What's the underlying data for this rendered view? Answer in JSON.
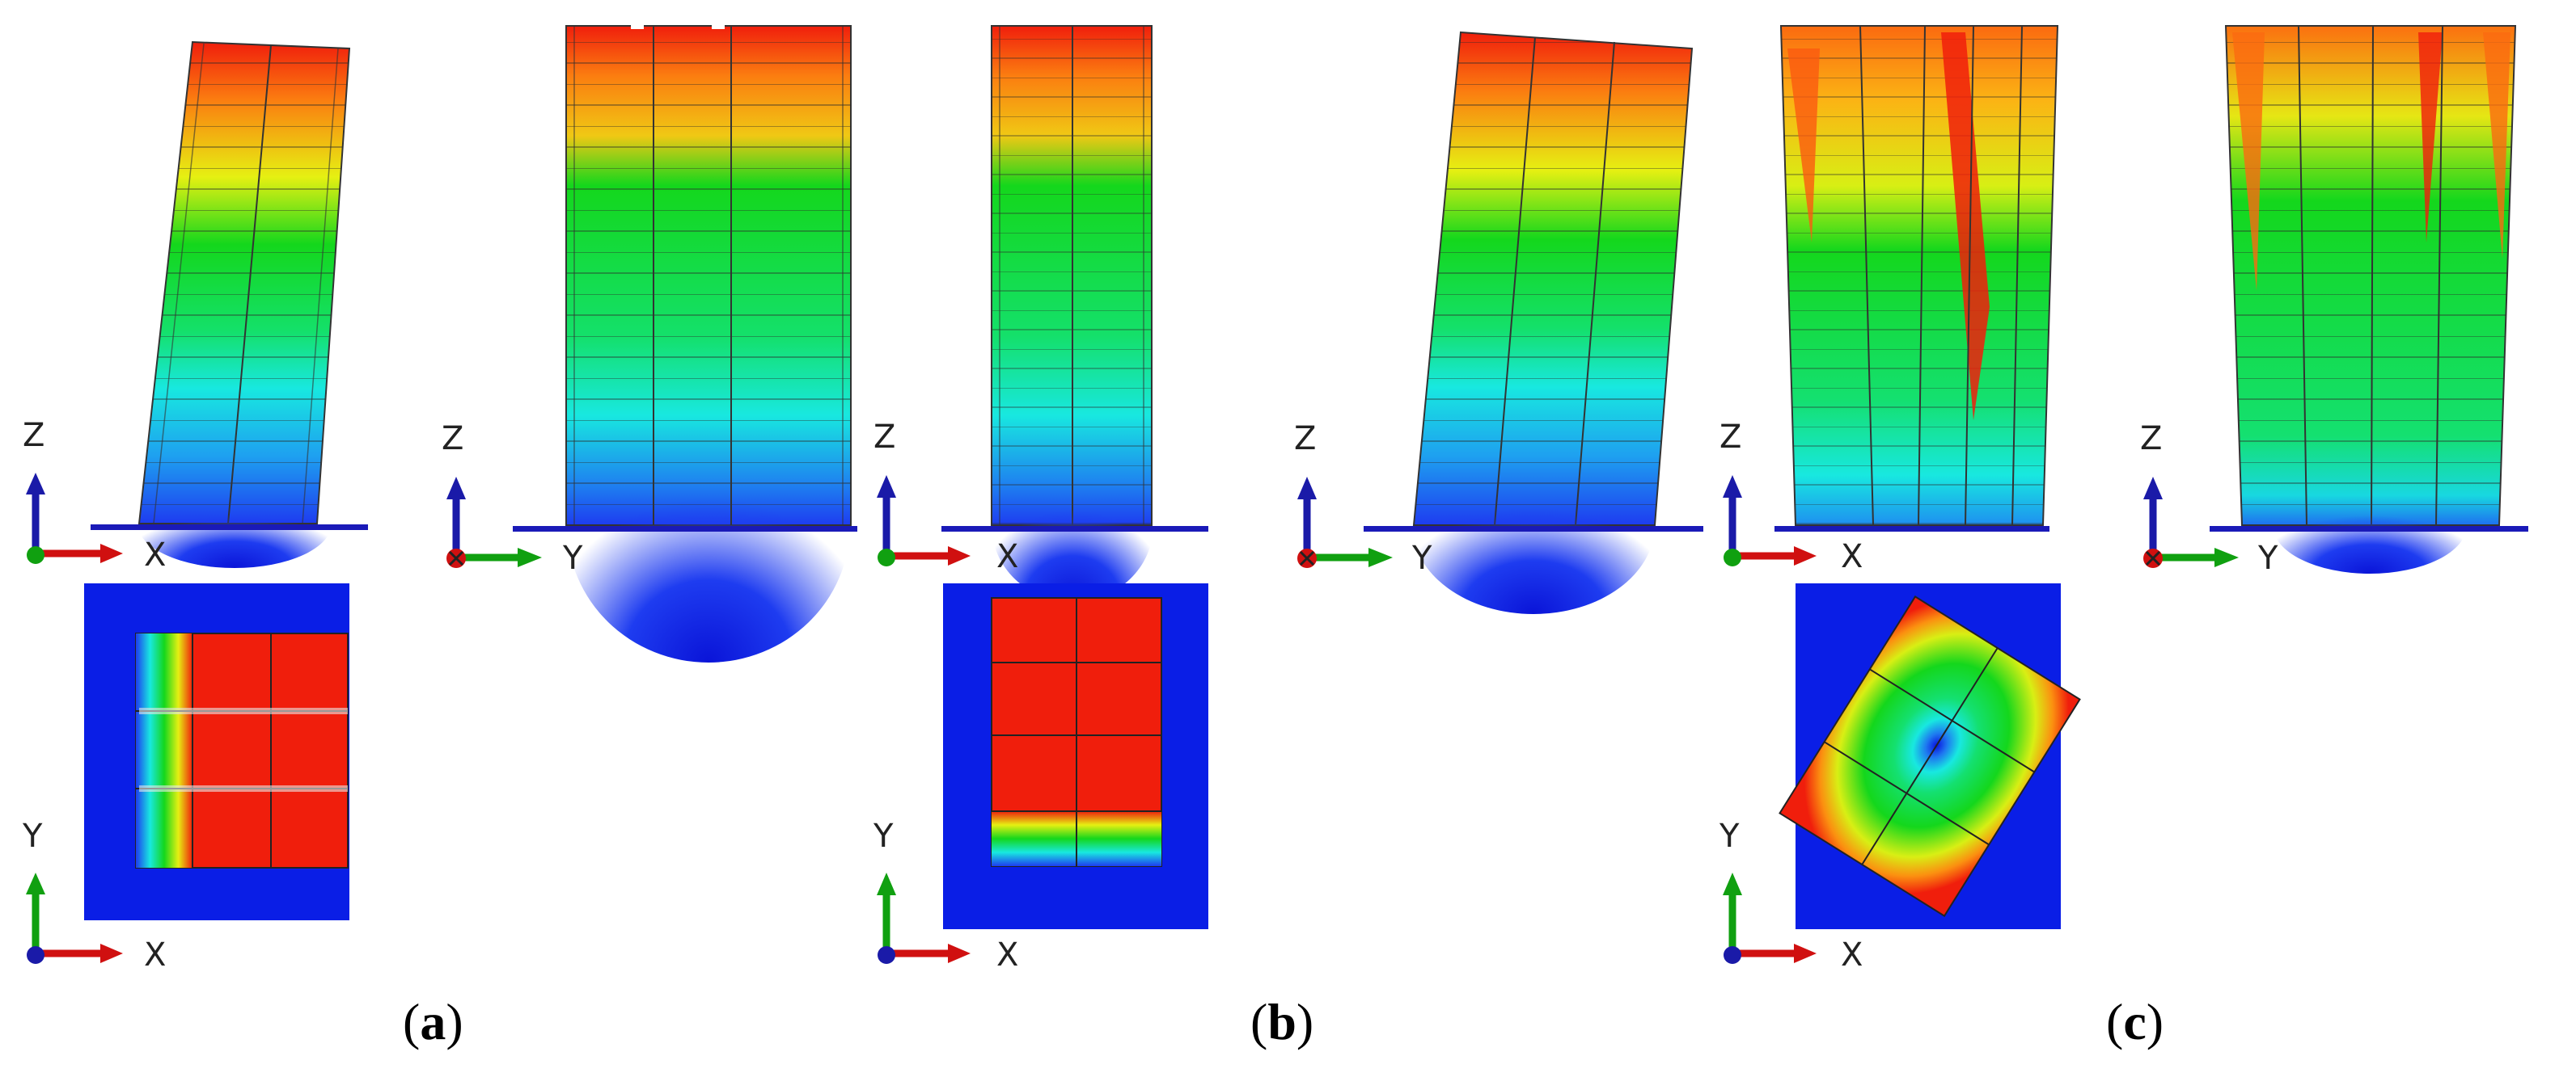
{
  "axis_labels": {
    "z": "Z",
    "x": "X",
    "y": "Y"
  },
  "captions": {
    "a": "a",
    "b": "b",
    "c": "c"
  },
  "colors": {
    "background": "#ffffff",
    "ground_line": "#1a1ab8",
    "plate_blue": "#0a1ee6",
    "contour_red": "#f01e0c",
    "contour_orange": "#fb7d10",
    "contour_yellow": "#e6f012",
    "contour_green": "#14d71c",
    "contour_cyan": "#18e8e0",
    "contour_blue": "#1e5cf0",
    "axis_z": "#1a1aa8",
    "axis_x": "#d01010",
    "axis_y": "#10a010"
  },
  "icons": {
    "triad": "coordinate-triad-icon"
  }
}
